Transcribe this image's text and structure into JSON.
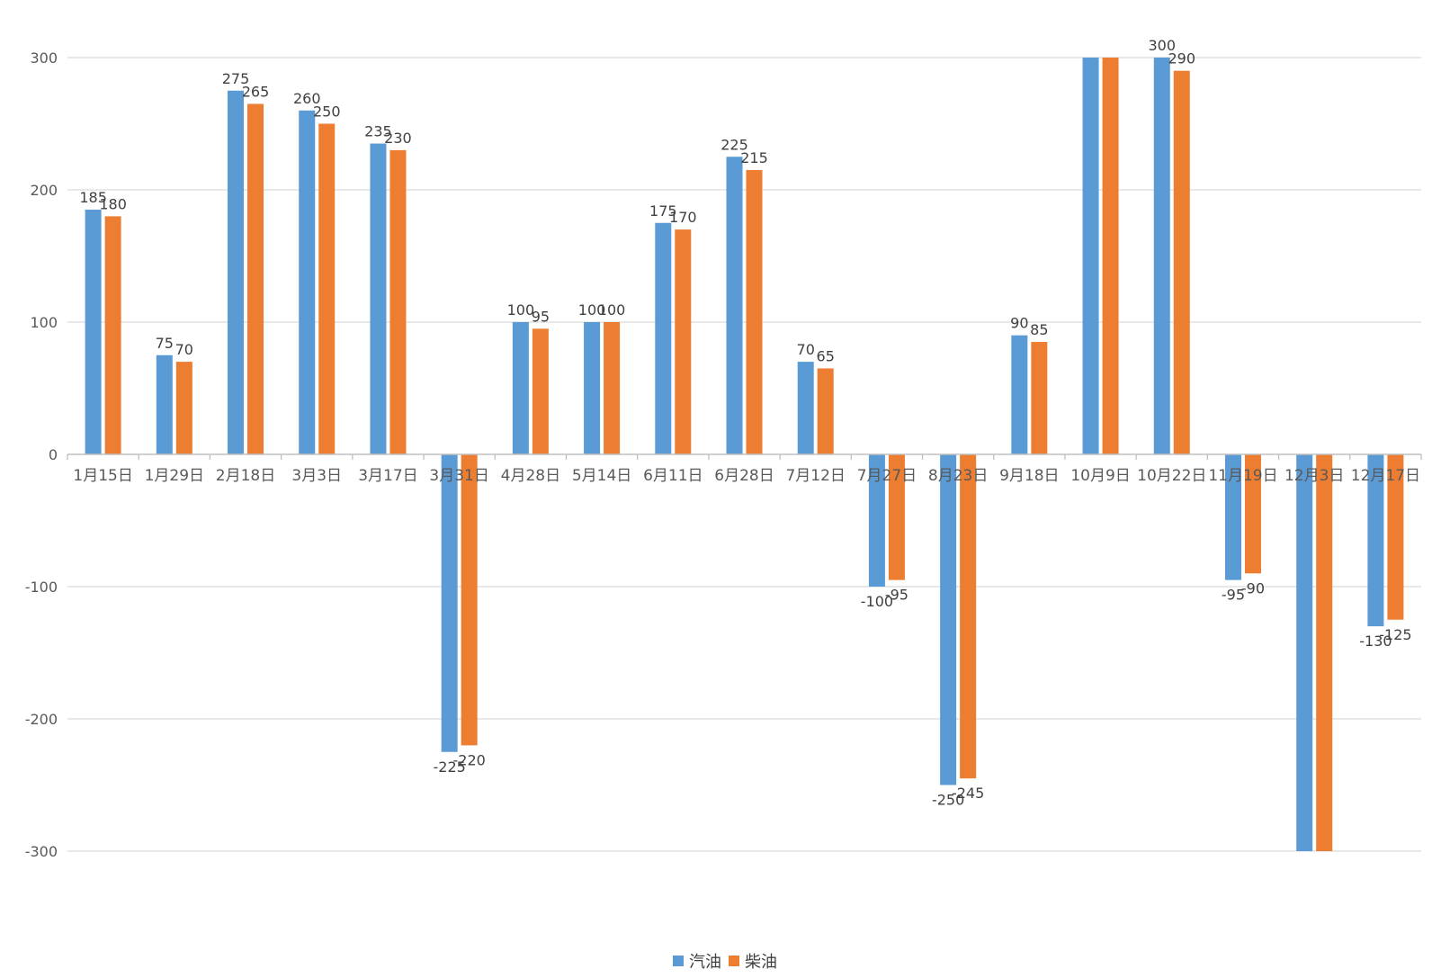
{
  "chart_data": {
    "type": "bar",
    "title": "",
    "xlabel": "",
    "ylabel": "",
    "ylim": [
      -300,
      300
    ],
    "yticks": [
      300,
      200,
      100,
      0,
      -100,
      -200,
      -300
    ],
    "grid": true,
    "legend_position": "bottom",
    "categories": [
      "1月15日",
      "1月29日",
      "2月18日",
      "3月3日",
      "3月17日",
      "3月31日",
      "4月28日",
      "5月14日",
      "6月11日",
      "6月28日",
      "7月12日",
      "7月27日",
      "8月23日",
      "9月18日",
      "10月9日",
      "10月22日",
      "11月19日",
      "12月3日",
      "12月17日"
    ],
    "series": [
      {
        "name": "汽油",
        "color": "#5b9bd5",
        "values": [
          185,
          75,
          275,
          260,
          235,
          -225,
          100,
          100,
          175,
          225,
          70,
          -100,
          -250,
          90,
          300,
          300,
          -95,
          -300,
          -130
        ],
        "labels": [
          "185",
          "75",
          "275",
          "260",
          "235",
          "-225",
          "100",
          "100",
          "175",
          "225",
          "70",
          "-100",
          "-250",
          "90",
          "",
          "300",
          "-95",
          "",
          "-130"
        ]
      },
      {
        "name": "柴油",
        "color": "#ed7d31",
        "values": [
          180,
          70,
          265,
          250,
          230,
          -220,
          95,
          100,
          170,
          215,
          65,
          -95,
          -245,
          85,
          300,
          290,
          -90,
          -300,
          -125
        ],
        "labels": [
          "180",
          "70",
          "265",
          "250",
          "230",
          "-220",
          "95",
          "100",
          "170",
          "215",
          "65",
          "-95",
          "-245",
          "85",
          "",
          "290",
          "-90",
          "",
          "-125"
        ]
      }
    ]
  }
}
